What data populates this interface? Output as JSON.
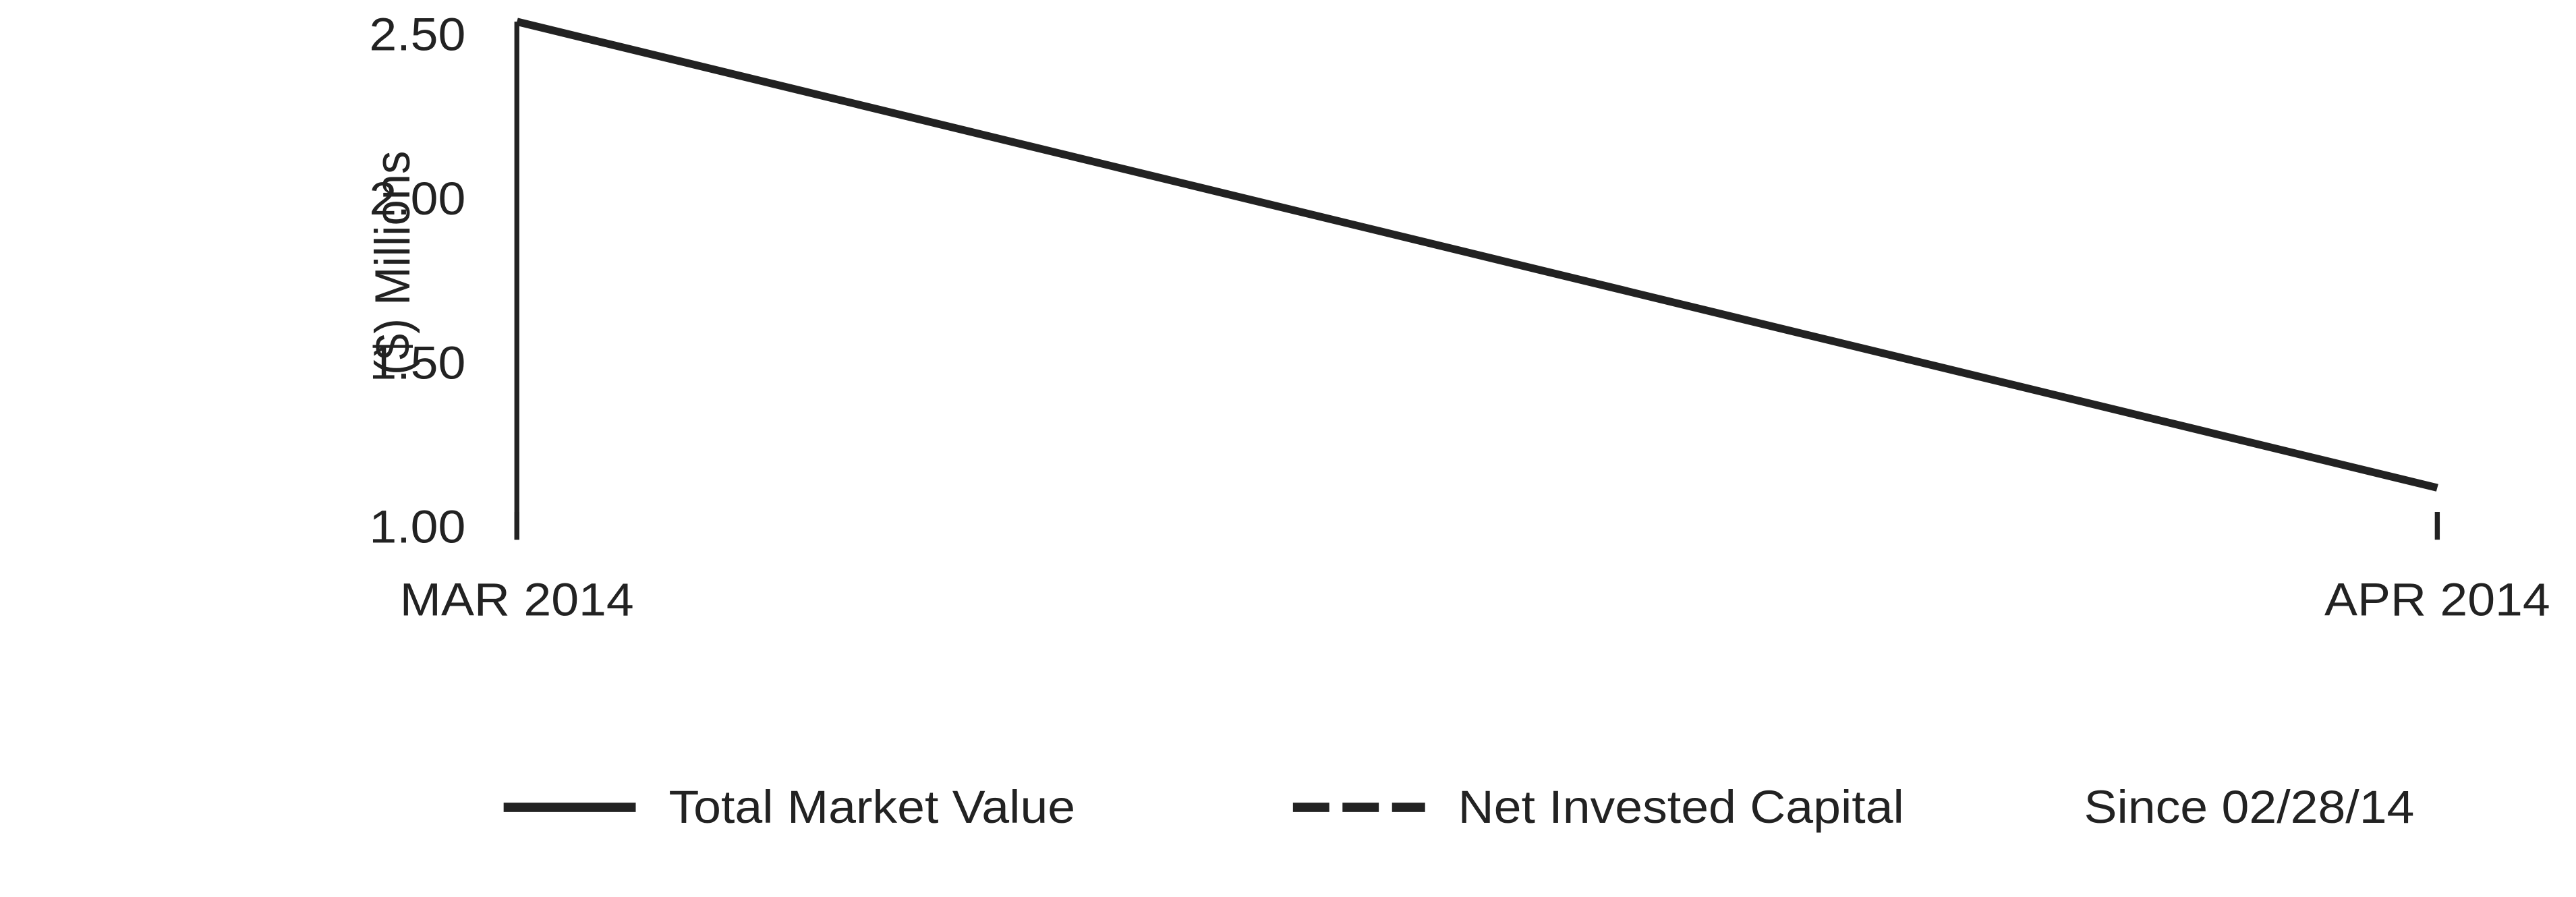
{
  "chart_data": {
    "type": "line",
    "y_label": "($)  Millions",
    "categories": [
      "MAR 2014",
      "APR 2014"
    ],
    "series": [
      {
        "name": "Total Market Value",
        "color": "#222222",
        "line_style": "solid",
        "values": [
          2.55,
          1.13
        ]
      },
      {
        "name": "Net Invested Capital",
        "color": "#222222",
        "line_style": "dashed",
        "values": [
          null,
          null
        ]
      }
    ],
    "ylim": [
      1.0,
      2.55
    ],
    "yticks": [
      {
        "value": 1.0,
        "label": "1.00"
      },
      {
        "value": 1.5,
        "label": "1.50"
      },
      {
        "value": 2.0,
        "label": "2.00"
      },
      {
        "value": 2.5,
        "label": "2.50"
      }
    ],
    "note": "Since 02/28/14"
  }
}
